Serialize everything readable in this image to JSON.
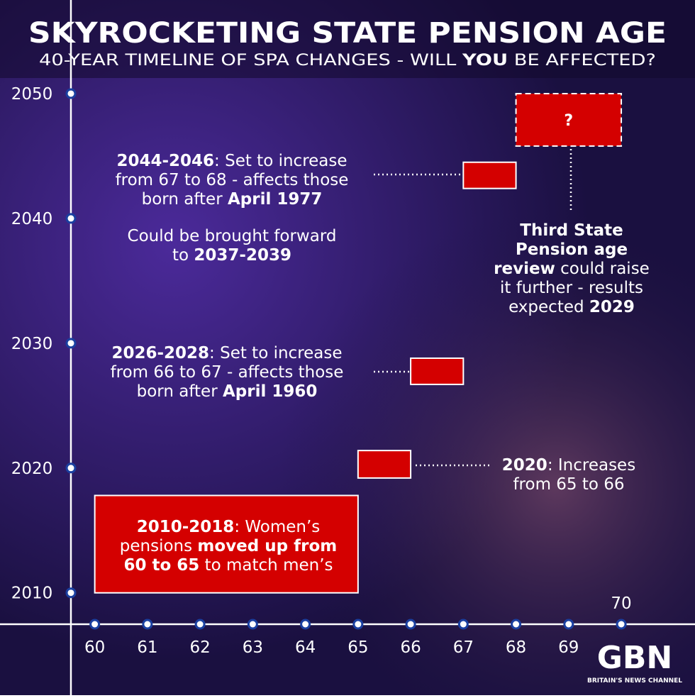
{
  "title": "SKYROCKETING STATE PENSION AGE",
  "subtitle": [
    {
      "text": "40-YEAR TIMELINE OF SPA CHANGES - WILL "
    },
    {
      "text": "YOU",
      "bold": true
    },
    {
      "text": " BE AFFECTED?"
    }
  ],
  "chart_data": {
    "type": "timeline-steps",
    "xlim": [
      58.2,
      71.4
    ],
    "ylim": [
      2001.8,
      2057.5
    ],
    "xticks": [
      60,
      61,
      62,
      63,
      64,
      65,
      66,
      67,
      68,
      69,
      70
    ],
    "yticks": [
      2010,
      2020,
      2030,
      2040,
      2050
    ],
    "color": "#d40000",
    "steps": [
      {
        "x": [
          60,
          65
        ],
        "y": [
          2010,
          2017.8
        ]
      },
      {
        "x": [
          65,
          66
        ],
        "y": [
          2019.2,
          2021.4
        ]
      },
      {
        "x": [
          66,
          67
        ],
        "y": [
          2026.7,
          2028.8
        ]
      },
      {
        "x": [
          67,
          68
        ],
        "y": [
          2042.4,
          2044.5
        ]
      },
      {
        "x": [
          68,
          70
        ],
        "y": [
          2045.8,
          2050
        ],
        "label": "?",
        "dashed": true
      }
    ]
  },
  "annotations": [
    {
      "lines": [
        [
          {
            "text": "2044-2046",
            "bold": true
          },
          {
            "text": ": Set to increase"
          }
        ],
        [
          {
            "text": "from 67 to 68 - affects those"
          }
        ],
        [
          {
            "text": "born after "
          },
          {
            "text": "April 1977",
            "bold": true
          }
        ]
      ]
    },
    {
      "lines": [
        [
          {
            "text": "Could be brought forward"
          }
        ],
        [
          {
            "text": "to "
          },
          {
            "text": "2037-2039",
            "bold": true
          }
        ]
      ]
    },
    {
      "lines": [
        [
          {
            "text": "2026-2028",
            "bold": true
          },
          {
            "text": ": Set to increase"
          }
        ],
        [
          {
            "text": "from 66 to 67 - affects those"
          }
        ],
        [
          {
            "text": "born after "
          },
          {
            "text": "April 1960",
            "bold": true
          }
        ]
      ]
    },
    {
      "lines": [
        [
          {
            "text": "2020",
            "bold": true
          },
          {
            "text": ": Increases"
          }
        ],
        [
          {
            "text": "from 65 to 66"
          }
        ]
      ]
    },
    {
      "lines": [
        [
          {
            "text": "Third State",
            "bold": true
          }
        ],
        [
          {
            "text": "Pension age",
            "bold": true
          }
        ],
        [
          {
            "text": "review",
            "bold": true
          },
          {
            "text": " could raise"
          }
        ],
        [
          {
            "text": "it further - results"
          }
        ],
        [
          {
            "text": "expected "
          },
          {
            "text": "2029",
            "bold": true
          }
        ]
      ]
    },
    {
      "lines": [
        [
          {
            "text": "2010-2018",
            "bold": true
          },
          {
            "text": ": Women’s"
          }
        ],
        [
          {
            "text": "pensions "
          },
          {
            "text": "moved up from",
            "bold": true
          }
        ],
        [
          {
            "text": "60 to 65",
            "bold": true
          },
          {
            "text": " to match men’s"
          }
        ]
      ]
    }
  ],
  "logo": {
    "name": "GBN",
    "tagline": "BRITAIN'S NEWS CHANNEL"
  }
}
